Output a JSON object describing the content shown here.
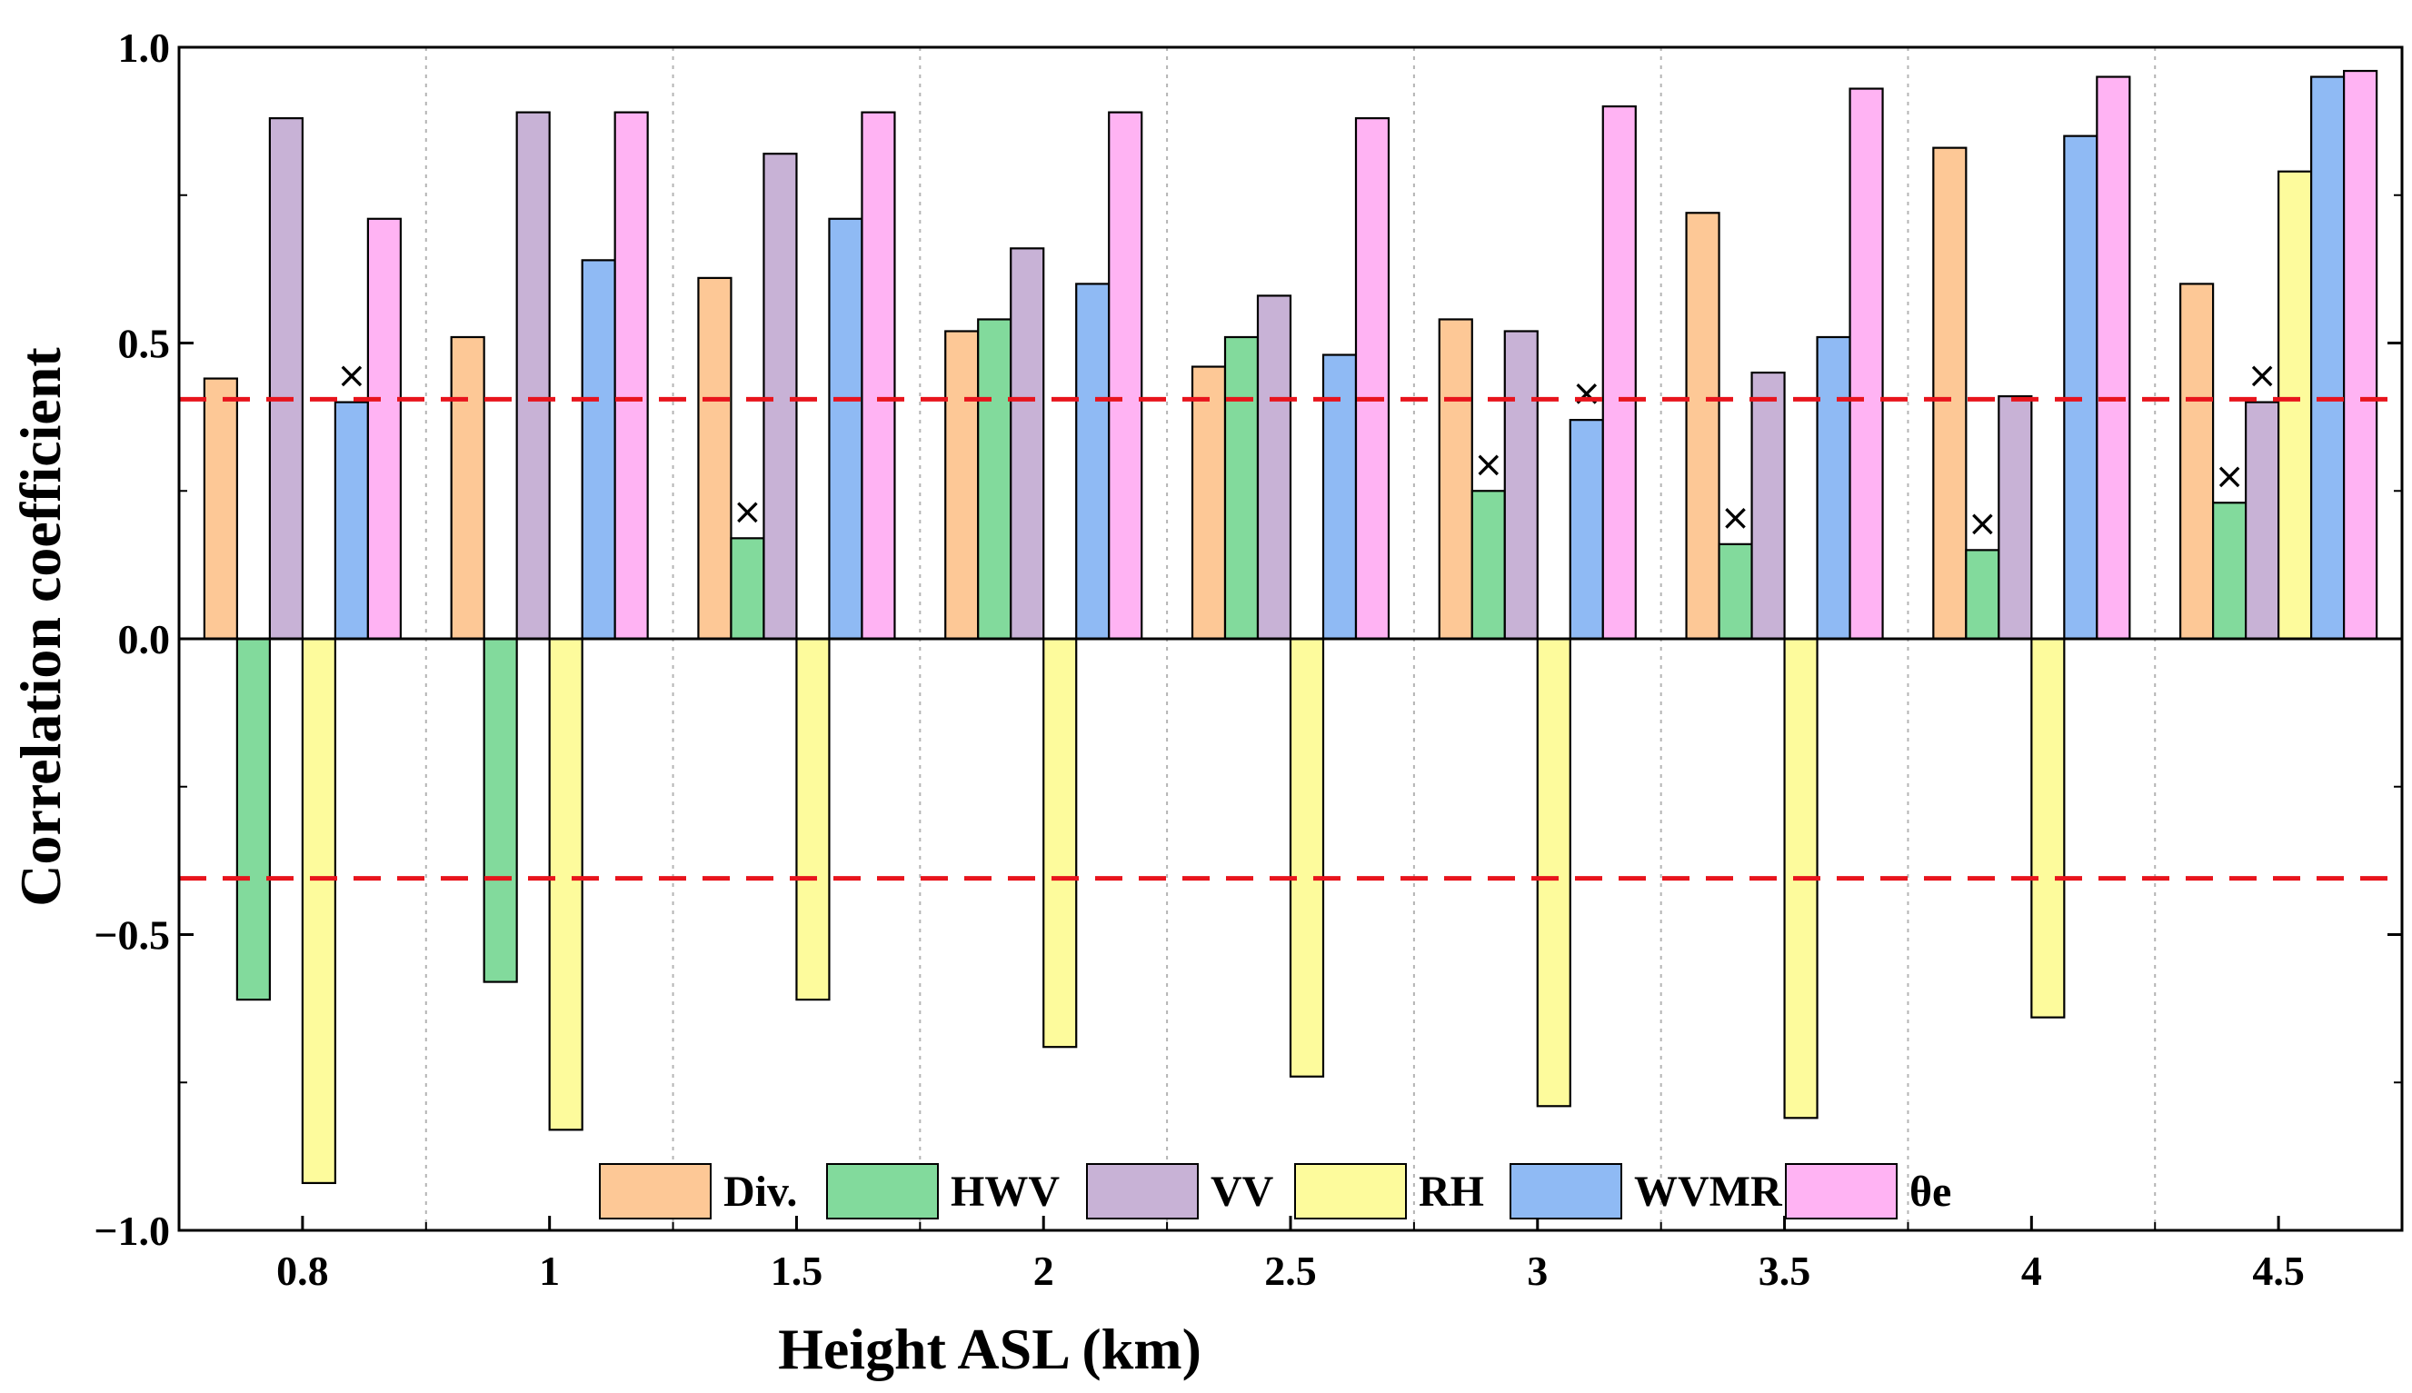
{
  "chart_data": {
    "type": "bar",
    "title": "",
    "xlabel": "Height ASL (km)",
    "ylabel": "Correlation coefficient",
    "categories": [
      "0.8",
      "1",
      "1.5",
      "2",
      "2.5",
      "3",
      "3.5",
      "4",
      "4.5"
    ],
    "ylim": [
      -1.0,
      1.0
    ],
    "yticks": [
      -1.0,
      -0.5,
      0.0,
      0.5,
      1.0
    ],
    "ytick_labels": [
      "−1.0",
      "−0.5",
      "0.0",
      "0.5",
      "1.0"
    ],
    "threshold_lines": [
      0.405,
      -0.405
    ],
    "threshold_color": "#e8141c",
    "grid": "vertical dotted separators",
    "legend_position": "bottom-center",
    "series": [
      {
        "name": "Div.",
        "color": "#fdc896",
        "values": [
          0.44,
          0.51,
          0.61,
          0.52,
          0.46,
          0.54,
          0.72,
          0.83,
          0.6
        ],
        "marked": [
          false,
          false,
          false,
          false,
          false,
          false,
          false,
          false,
          false
        ]
      },
      {
        "name": "HWV",
        "color": "#82da9c",
        "values": [
          -0.61,
          -0.58,
          0.17,
          0.54,
          0.51,
          0.25,
          0.16,
          0.15,
          0.23
        ],
        "marked": [
          false,
          false,
          true,
          false,
          false,
          true,
          true,
          true,
          true
        ]
      },
      {
        "name": "VV",
        "color": "#c8b2d6",
        "values": [
          0.88,
          0.89,
          0.82,
          0.66,
          0.58,
          0.52,
          0.45,
          0.41,
          0.4
        ],
        "marked": [
          false,
          false,
          false,
          false,
          false,
          false,
          false,
          false,
          true
        ]
      },
      {
        "name": "RH",
        "color": "#fdfb9c",
        "values": [
          -0.92,
          -0.83,
          -0.61,
          -0.69,
          -0.74,
          -0.79,
          -0.81,
          -0.64,
          0.79
        ],
        "marked": [
          false,
          false,
          false,
          false,
          false,
          false,
          false,
          false,
          false
        ]
      },
      {
        "name": "WVMR",
        "color": "#8fbaf4",
        "values": [
          0.4,
          0.64,
          0.71,
          0.6,
          0.48,
          0.37,
          0.51,
          0.85,
          0.95
        ],
        "marked": [
          true,
          false,
          false,
          false,
          false,
          true,
          false,
          false,
          false
        ]
      },
      {
        "name": "θe",
        "color": "#ffb3f3",
        "values": [
          0.71,
          0.89,
          0.89,
          0.89,
          0.88,
          0.9,
          0.93,
          0.95,
          0.96
        ],
        "marked": [
          false,
          false,
          false,
          false,
          false,
          false,
          false,
          false,
          false
        ]
      }
    ],
    "marker_symbol": "×"
  }
}
